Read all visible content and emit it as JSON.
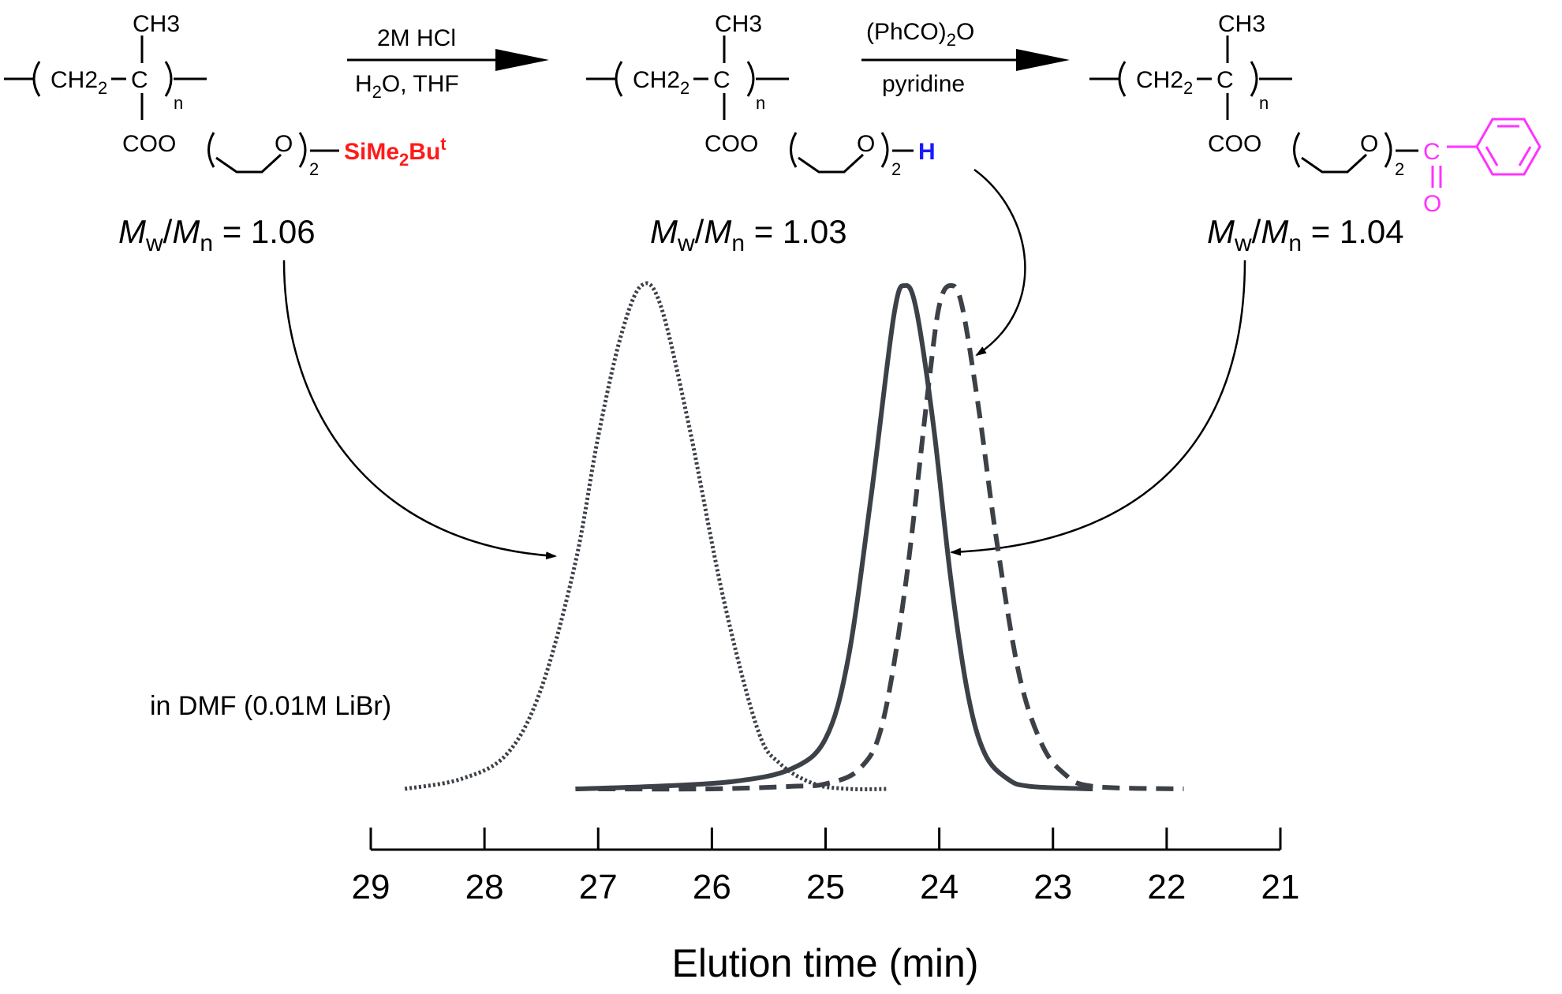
{
  "scheme": {
    "polymers": [
      {
        "methyl": "CH3",
        "backbone": "CH2",
        "carbon": "C",
        "repeat": "n",
        "ester": "COO",
        "ether_o": "O",
        "count": "2",
        "end_group": "SiMe2Bu^t",
        "end_group_color": "#ff1a1a",
        "dispersity_label": "Mw/Mn = 1.06"
      },
      {
        "methyl": "CH3",
        "backbone": "CH2",
        "carbon": "C",
        "repeat": "n",
        "ester": "COO",
        "ether_o": "O",
        "count": "2",
        "end_group": "H",
        "end_group_color": "#1a1aff",
        "dispersity_label": "Mw/Mn = 1.03"
      },
      {
        "methyl": "CH3",
        "backbone": "CH2",
        "carbon": "C",
        "repeat": "n",
        "ester": "COO",
        "ether_o": "O",
        "count": "2",
        "end_group": "C(=O)Ph",
        "end_group_color": "#ff33ff",
        "carbonyl_c": "C",
        "carbonyl_o": "O",
        "dispersity_label": "Mw/Mn = 1.04"
      }
    ],
    "steps": [
      {
        "above": "2M HCl",
        "below": "H2O, THF"
      },
      {
        "above": "(PhCO)2O",
        "below": "pyridine"
      }
    ]
  },
  "chart_data": {
    "type": "line",
    "xlabel": "Elution time (min)",
    "ylabel": "",
    "xlim": [
      29,
      21
    ],
    "x_reversed": true,
    "xticks": [
      "29",
      "28",
      "27",
      "26",
      "25",
      "24",
      "23",
      "22",
      "21"
    ],
    "annotation": "in DMF (0.01M LiBr)",
    "line_color": "#3c4148",
    "series": [
      {
        "style": "dotted",
        "peak_x": 26.62,
        "x_start": 28.7,
        "x_end": 24.45,
        "x": [
          28.7,
          28.2,
          27.8,
          27.5,
          27.2,
          27.0,
          26.8,
          26.62,
          26.45,
          26.2,
          25.9,
          25.6,
          25.4,
          25.1,
          24.8,
          24.45
        ],
        "y": [
          0.0,
          0.02,
          0.07,
          0.2,
          0.45,
          0.7,
          0.9,
          1.0,
          0.96,
          0.72,
          0.38,
          0.12,
          0.05,
          0.01,
          0.0,
          0.0
        ]
      },
      {
        "style": "solid",
        "peak_x": 24.3,
        "x_start": 27.2,
        "x_end": 22.65,
        "x": [
          27.2,
          26.5,
          25.8,
          25.3,
          25.0,
          24.8,
          24.6,
          24.4,
          24.3,
          24.2,
          24.05,
          23.9,
          23.75,
          23.6,
          23.4,
          23.2,
          22.65
        ],
        "y": [
          0.0,
          0.005,
          0.015,
          0.04,
          0.1,
          0.26,
          0.58,
          0.94,
          1.0,
          0.95,
          0.72,
          0.42,
          0.19,
          0.07,
          0.02,
          0.005,
          0.0
        ]
      },
      {
        "style": "dashed",
        "peak_x": 23.9,
        "x_start": 27.0,
        "x_end": 21.85,
        "x": [
          27.0,
          26.0,
          25.3,
          25.0,
          24.7,
          24.5,
          24.3,
          24.1,
          24.0,
          23.9,
          23.8,
          23.65,
          23.5,
          23.3,
          23.1,
          22.9,
          22.65,
          21.85
        ],
        "y": [
          0.0,
          0.0,
          0.005,
          0.01,
          0.04,
          0.13,
          0.4,
          0.79,
          0.96,
          1.0,
          0.96,
          0.75,
          0.5,
          0.23,
          0.09,
          0.03,
          0.005,
          0.0
        ]
      }
    ]
  }
}
